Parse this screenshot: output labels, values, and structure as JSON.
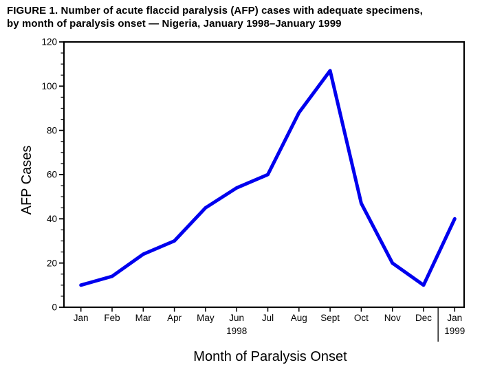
{
  "figure": {
    "title_line1": "FIGURE 1. Number of acute flaccid paralysis (AFP) cases with adequate specimens,",
    "title_line2": "by month of paralysis onset — Nigeria, January 1998–January 1999"
  },
  "chart_data": {
    "type": "line",
    "title": "FIGURE 1. Number of acute flaccid paralysis (AFP) cases with adequate specimens, by month of paralysis onset — Nigeria, January 1998–January 1999",
    "categories": [
      "Jan",
      "Feb",
      "Mar",
      "Apr",
      "May",
      "Jun",
      "Jul",
      "Aug",
      "Sept",
      "Oct",
      "Nov",
      "Dec",
      "Jan"
    ],
    "values": [
      10,
      14,
      24,
      30,
      45,
      54,
      60,
      88,
      107,
      47,
      20,
      10,
      40
    ],
    "series_name": "AFP cases with adequate specimens",
    "xlabel": "Month of Paralysis Onset",
    "ylabel": "AFP Cases",
    "ylim": [
      0,
      120
    ],
    "y_major_ticks": [
      0,
      20,
      40,
      60,
      80,
      100,
      120
    ],
    "y_minor_step": 5,
    "x_year_labels": [
      {
        "label": "1998",
        "month_index": 5
      },
      {
        "label": "1999",
        "month_index": 12
      }
    ],
    "year_separator_after_index": 11,
    "grid": false,
    "legend": "none",
    "line_color": "#0000EE",
    "axis_color": "#000000",
    "background_color": "#FFFFFF",
    "line_width": 5
  }
}
